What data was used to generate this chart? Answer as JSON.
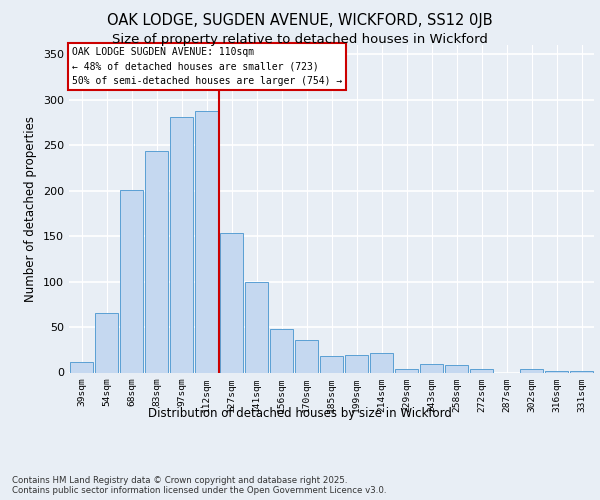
{
  "title_line1": "OAK LODGE, SUGDEN AVENUE, WICKFORD, SS12 0JB",
  "title_line2": "Size of property relative to detached houses in Wickford",
  "xlabel": "Distribution of detached houses by size in Wickford",
  "ylabel": "Number of detached properties",
  "categories": [
    "39sqm",
    "54sqm",
    "68sqm",
    "83sqm",
    "97sqm",
    "112sqm",
    "127sqm",
    "141sqm",
    "156sqm",
    "170sqm",
    "185sqm",
    "199sqm",
    "214sqm",
    "229sqm",
    "243sqm",
    "258sqm",
    "272sqm",
    "287sqm",
    "302sqm",
    "316sqm",
    "331sqm"
  ],
  "values": [
    12,
    65,
    201,
    243,
    281,
    288,
    153,
    99,
    48,
    36,
    18,
    19,
    21,
    4,
    9,
    8,
    4,
    0,
    4,
    2,
    2
  ],
  "bar_color": "#c5d8f0",
  "bar_edge_color": "#5a9fd4",
  "background_color": "#e8eef5",
  "grid_color": "#ffffff",
  "annotation_box_text": "OAK LODGE SUGDEN AVENUE: 110sqm\n← 48% of detached houses are smaller (723)\n50% of semi-detached houses are larger (754) →",
  "vline_x": 5.5,
  "vline_color": "#cc0000",
  "ylim": [
    0,
    360
  ],
  "yticks": [
    0,
    50,
    100,
    150,
    200,
    250,
    300,
    350
  ],
  "footnote": "Contains HM Land Registry data © Crown copyright and database right 2025.\nContains public sector information licensed under the Open Government Licence v3.0.",
  "annotation_fontsize": 7.0,
  "title_fontsize1": 10.5,
  "title_fontsize2": 9.5,
  "xlabel_fontsize": 8.5,
  "ylabel_fontsize": 8.5,
  "fig_bg": "#e8eef5"
}
